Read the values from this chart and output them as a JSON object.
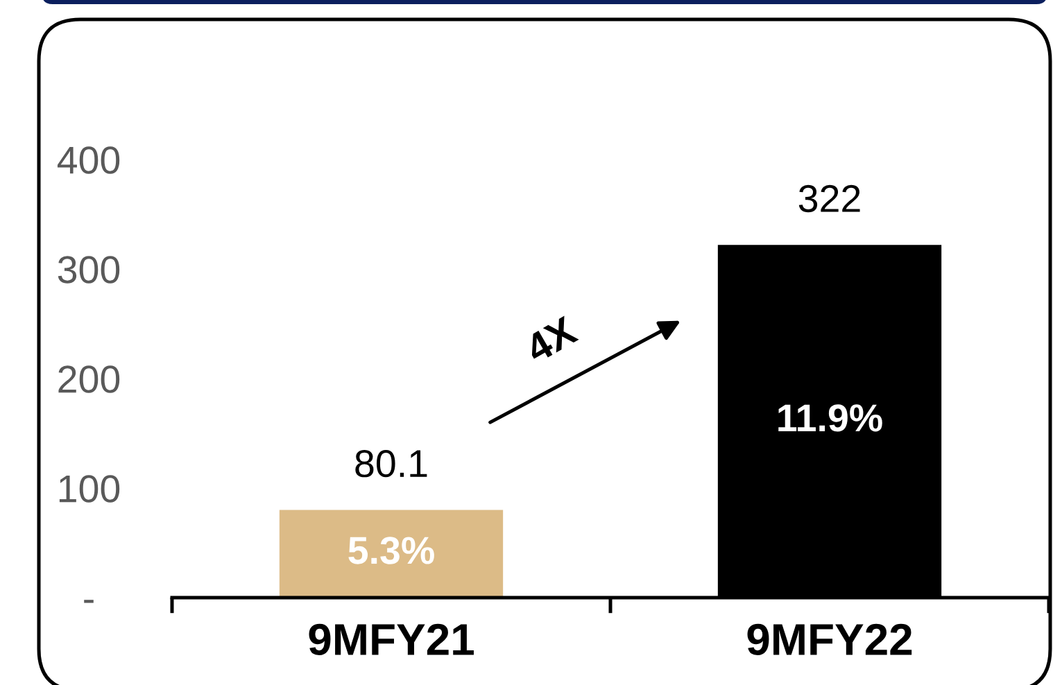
{
  "chart_data": {
    "type": "bar",
    "categories": [
      "9MFY21",
      "9MFY22"
    ],
    "values": [
      80.1,
      322
    ],
    "colors": [
      "#dcbb87",
      "#000000"
    ],
    "ylim": [
      0,
      400
    ],
    "yticks": [
      {
        "value": 0,
        "label": "-"
      },
      100,
      200,
      300,
      400
    ],
    "data_labels": true,
    "annotations": [
      "4X",
      "5.3%",
      "11.9%"
    ]
  }
}
